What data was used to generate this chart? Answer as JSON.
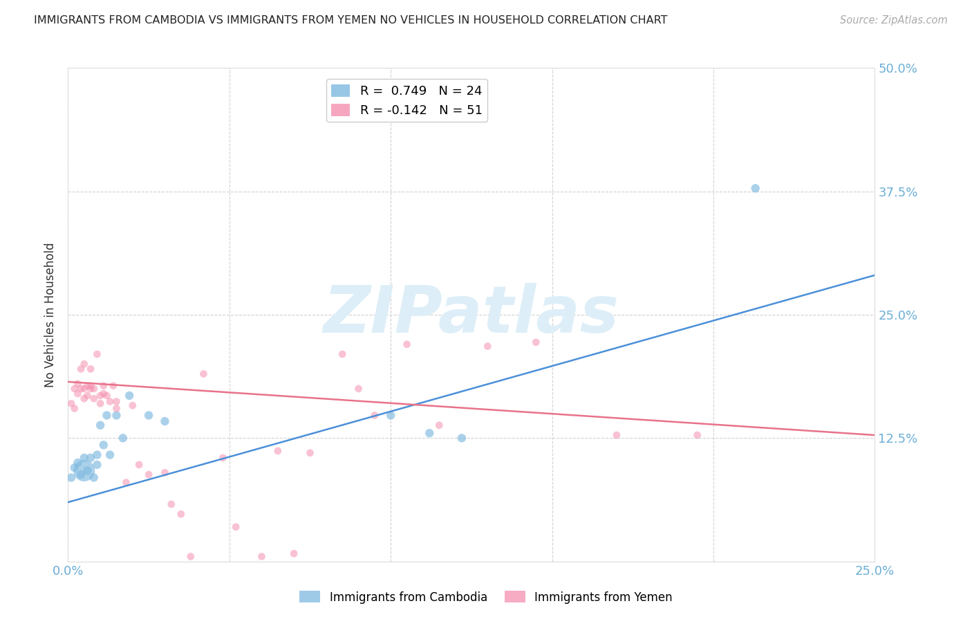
{
  "title": "IMMIGRANTS FROM CAMBODIA VS IMMIGRANTS FROM YEMEN NO VEHICLES IN HOUSEHOLD CORRELATION CHART",
  "source": "Source: ZipAtlas.com",
  "ylabel": "No Vehicles in Household",
  "xlim": [
    0.0,
    0.25
  ],
  "ylim": [
    -0.02,
    0.52
  ],
  "plot_ylim": [
    0.0,
    0.5
  ],
  "xticks": [
    0.0,
    0.05,
    0.1,
    0.15,
    0.2,
    0.25
  ],
  "yticks": [
    0.0,
    0.125,
    0.25,
    0.375,
    0.5
  ],
  "legend1_label": "R =  0.749   N = 24",
  "legend2_label": "R = -0.142   N = 51",
  "legend1_color": "#7fb9e0",
  "legend2_color": "#f590b0",
  "line1_color": "#4a90d9",
  "line2_color": "#e8728a",
  "watermark_text": "ZIPatlas",
  "watermark_color": "#ddeef8",
  "background_color": "#ffffff",
  "grid_color": "#cccccc",
  "tick_label_color": "#6baed6",
  "title_color": "#222222",
  "source_color": "#aaaaaa",
  "cambodia_x": [
    0.001,
    0.002,
    0.003,
    0.004,
    0.005,
    0.005,
    0.006,
    0.007,
    0.008,
    0.009,
    0.009,
    0.01,
    0.011,
    0.012,
    0.013,
    0.015,
    0.017,
    0.019,
    0.025,
    0.03,
    0.1,
    0.112,
    0.122,
    0.213
  ],
  "cambodia_y": [
    0.085,
    0.095,
    0.1,
    0.088,
    0.092,
    0.105,
    0.092,
    0.105,
    0.085,
    0.098,
    0.108,
    0.138,
    0.118,
    0.148,
    0.108,
    0.148,
    0.125,
    0.168,
    0.148,
    0.142,
    0.148,
    0.13,
    0.125,
    0.378
  ],
  "cambodia_sizes": [
    80,
    80,
    80,
    80,
    500,
    80,
    80,
    80,
    80,
    80,
    80,
    80,
    80,
    80,
    80,
    80,
    80,
    80,
    80,
    80,
    80,
    80,
    80,
    80
  ],
  "yemen_x": [
    0.001,
    0.002,
    0.002,
    0.003,
    0.003,
    0.004,
    0.004,
    0.005,
    0.005,
    0.005,
    0.006,
    0.006,
    0.007,
    0.007,
    0.007,
    0.008,
    0.008,
    0.009,
    0.01,
    0.01,
    0.011,
    0.011,
    0.012,
    0.013,
    0.014,
    0.015,
    0.015,
    0.018,
    0.02,
    0.022,
    0.025,
    0.03,
    0.032,
    0.035,
    0.038,
    0.042,
    0.048,
    0.052,
    0.06,
    0.065,
    0.07,
    0.075,
    0.085,
    0.09,
    0.095,
    0.105,
    0.115,
    0.13,
    0.145,
    0.17,
    0.195
  ],
  "yemen_y": [
    0.16,
    0.175,
    0.155,
    0.17,
    0.18,
    0.175,
    0.195,
    0.2,
    0.175,
    0.165,
    0.178,
    0.168,
    0.175,
    0.178,
    0.195,
    0.175,
    0.165,
    0.21,
    0.168,
    0.16,
    0.17,
    0.178,
    0.168,
    0.162,
    0.178,
    0.162,
    0.155,
    0.08,
    0.158,
    0.098,
    0.088,
    0.09,
    0.058,
    0.048,
    0.005,
    0.19,
    0.105,
    0.035,
    0.005,
    0.112,
    0.008,
    0.11,
    0.21,
    0.175,
    0.148,
    0.22,
    0.138,
    0.218,
    0.222,
    0.128,
    0.128
  ],
  "yemen_size": 60,
  "blue_line_x": [
    0.0,
    0.25
  ],
  "blue_line_y": [
    0.06,
    0.29
  ],
  "pink_line_x": [
    0.0,
    0.25
  ],
  "pink_line_y": [
    0.182,
    0.128
  ]
}
